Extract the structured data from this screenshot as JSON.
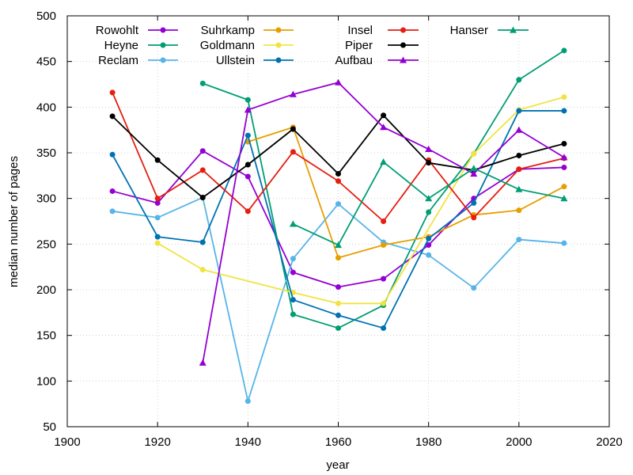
{
  "chart_data": {
    "type": "line",
    "title": "",
    "xlabel": "year",
    "ylabel": "median number of pages",
    "xlim": [
      1900,
      2020
    ],
    "ylim": [
      50,
      500
    ],
    "xticks": [
      1900,
      1920,
      1940,
      1960,
      1980,
      2000,
      2020
    ],
    "yticks": [
      50,
      100,
      150,
      200,
      250,
      300,
      350,
      400,
      450,
      500
    ],
    "xtick_labels": [
      "1900",
      "1920",
      "1940",
      "1960",
      "1980",
      "2000",
      "2020"
    ],
    "ytick_labels": [
      "50",
      "100",
      "150",
      "200",
      "250",
      "300",
      "350",
      "400",
      "450",
      "500"
    ],
    "grid": true,
    "legend_position": "top",
    "series": [
      {
        "name": "Rowohlt",
        "color": "#9400d3",
        "marker": "circle",
        "x": [
          1910,
          1920,
          1930,
          1940,
          1950,
          1960,
          1970,
          1980,
          1990,
          2000,
          2010
        ],
        "y": [
          308,
          295,
          352,
          324,
          219,
          203,
          212,
          249,
          300,
          332,
          334
        ]
      },
      {
        "name": "Heyne",
        "color": "#009e73",
        "marker": "circle",
        "x": [
          1930,
          1940,
          1950,
          1960,
          1970,
          1980,
          1990,
          2000,
          2010
        ],
        "y": [
          426,
          408,
          173,
          158,
          183,
          285,
          349,
          430,
          462
        ]
      },
      {
        "name": "Reclam",
        "color": "#56b4e9",
        "marker": "circle",
        "x": [
          1910,
          1920,
          1930,
          1940,
          1950,
          1960,
          1970,
          1980,
          1990,
          2000,
          2010
        ],
        "y": [
          286,
          279,
          301,
          78,
          234,
          294,
          252,
          238,
          202,
          255,
          251
        ]
      },
      {
        "name": "Suhrkamp",
        "color": "#e69f00",
        "marker": "circle",
        "x": [
          1940,
          1950,
          1960,
          1970,
          1980,
          1990,
          2000,
          2010
        ],
        "y": [
          362,
          378,
          235,
          249,
          258,
          282,
          287,
          313
        ]
      },
      {
        "name": "Goldmann",
        "color": "#f0e442",
        "marker": "circle",
        "x": [
          1920,
          1930,
          1950,
          1960,
          1970,
          1990,
          2000,
          2010
        ],
        "y": [
          251,
          222,
          197,
          185,
          185,
          349,
          397,
          411
        ]
      },
      {
        "name": "Ullstein",
        "color": "#0072b2",
        "marker": "circle",
        "x": [
          1910,
          1920,
          1930,
          1940,
          1950,
          1960,
          1970,
          1980,
          1990,
          2000,
          2010
        ],
        "y": [
          348,
          258,
          252,
          369,
          189,
          172,
          158,
          256,
          295,
          396,
          396
        ]
      },
      {
        "name": "Insel",
        "color": "#e51e10",
        "marker": "circle",
        "x": [
          1910,
          1920,
          1930,
          1940,
          1950,
          1960,
          1970,
          1980,
          1990,
          2000,
          2010
        ],
        "y": [
          416,
          300,
          331,
          286,
          351,
          319,
          275,
          342,
          279,
          332,
          344
        ]
      },
      {
        "name": "Piper",
        "color": "#000000",
        "marker": "circle",
        "x": [
          1910,
          1920,
          1930,
          1940,
          1950,
          1960,
          1970,
          1980,
          1990,
          2000,
          2010
        ],
        "y": [
          390,
          342,
          301,
          337,
          376,
          327,
          391,
          339,
          331,
          347,
          360
        ]
      },
      {
        "name": "Aufbau",
        "color": "#9400d3",
        "marker": "triangle",
        "x": [
          1930,
          1940,
          1950,
          1960,
          1970,
          1980,
          1990,
          2000,
          2010
        ],
        "y": [
          120,
          397,
          414,
          427,
          378,
          354,
          327,
          375,
          345
        ]
      },
      {
        "name": "Hanser",
        "color": "#009e73",
        "marker": "triangle",
        "x": [
          1950,
          1960,
          1970,
          1980,
          1990,
          2000,
          2010
        ],
        "y": [
          272,
          249,
          340,
          300,
          333,
          310,
          300
        ]
      }
    ]
  }
}
